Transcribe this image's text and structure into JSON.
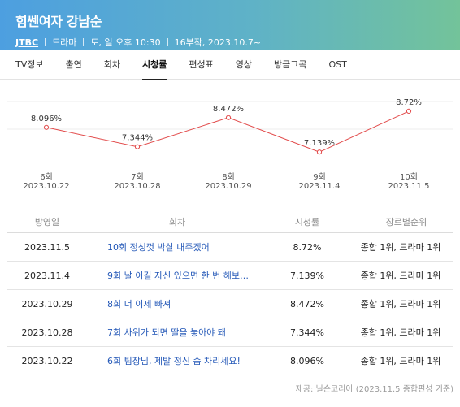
{
  "header": {
    "title": "힘쎈여자 강남순",
    "network": "JTBC",
    "genre": "드라마",
    "schedule": "토, 일 오후 10:30",
    "info": "16부작, 2023.10.7~"
  },
  "tabs": [
    {
      "label": "TV정보"
    },
    {
      "label": "출연"
    },
    {
      "label": "회차"
    },
    {
      "label": "시청률"
    },
    {
      "label": "편성표"
    },
    {
      "label": "영상"
    },
    {
      "label": "방금그곡"
    },
    {
      "label": "OST"
    }
  ],
  "active_tab": "시청률",
  "chart_data": {
    "type": "line",
    "x": [
      "6회",
      "7회",
      "8회",
      "9회",
      "10회"
    ],
    "dates": [
      "2023.10.22",
      "2023.10.28",
      "2023.10.29",
      "2023.11.4",
      "2023.11.5"
    ],
    "values": [
      8.096,
      7.344,
      8.472,
      7.139,
      8.72
    ],
    "labels": [
      "8.096%",
      "7.344%",
      "8.472%",
      "7.139%",
      "8.72%"
    ],
    "ylim": [
      6.8,
      9.0
    ],
    "line_color": "#e24b4b",
    "grid": "horizontal"
  },
  "table": {
    "headers": {
      "date": "방영일",
      "episode": "회차",
      "rating": "시청률",
      "rank": "장르별순위"
    },
    "rows": [
      {
        "date": "2023.11.5",
        "episode": "10회 정성껏 박살 내주겠어",
        "rating": "8.72%",
        "rank": "종합 1위, 드라마 1위"
      },
      {
        "date": "2023.11.4",
        "episode": "9회 날 이길 자신 있으면 한 번 해보…",
        "rating": "7.139%",
        "rank": "종합 1위, 드라마 1위"
      },
      {
        "date": "2023.10.29",
        "episode": "8회 너 이제 빠져",
        "rating": "8.472%",
        "rank": "종합 1위, 드라마 1위"
      },
      {
        "date": "2023.10.28",
        "episode": "7회 사위가 되면 딸을 놓아야 돼",
        "rating": "7.344%",
        "rank": "종합 1위, 드라마 1위"
      },
      {
        "date": "2023.10.22",
        "episode": "6회 팀장님, 제발 정신 좀 차리세요!",
        "rating": "8.096%",
        "rank": "종합 1위, 드라마 1위"
      }
    ]
  },
  "source": "제공: 닐슨코리아 (2023.11.5 종합편성 기준)"
}
